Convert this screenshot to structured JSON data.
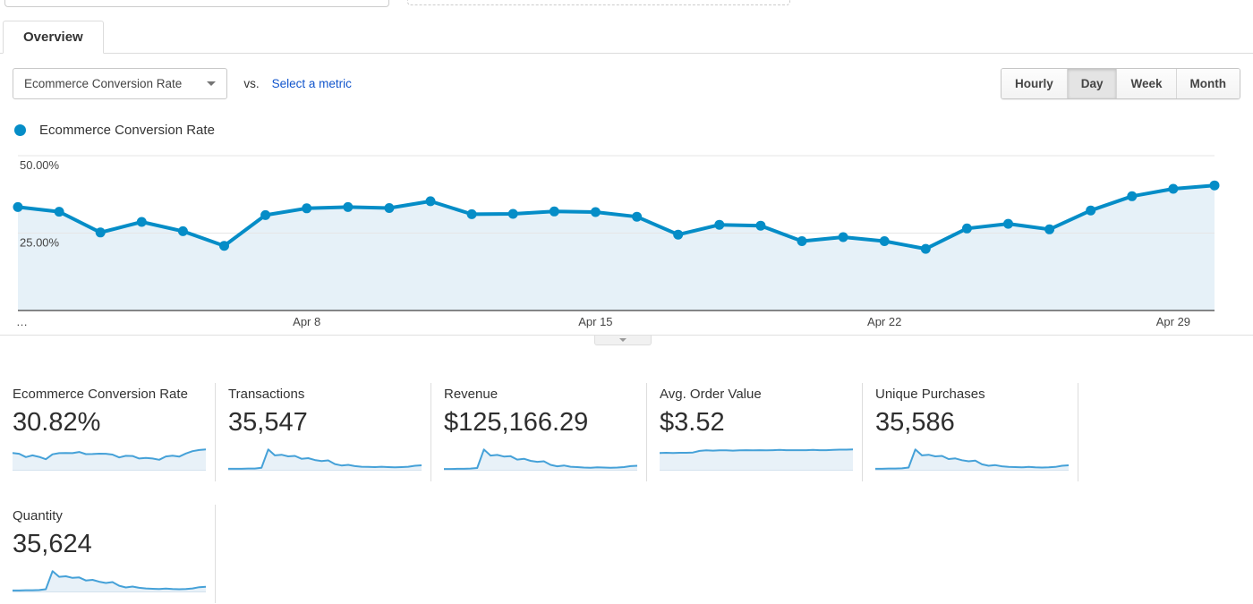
{
  "tabs": {
    "overview": "Overview"
  },
  "controls": {
    "metric_selector": "Ecommerce Conversion Rate",
    "vs_label": "vs.",
    "select_metric_link": "Select a metric",
    "granularity": [
      "Hourly",
      "Day",
      "Week",
      "Month"
    ],
    "granularity_selected": "Day"
  },
  "legend": {
    "label": "Ecommerce Conversion Rate"
  },
  "colors": {
    "line_blue": "#058dc7",
    "area_fill": "#e6f1f8",
    "spark_line": "#45a1d8",
    "spark_fill": "#e8f1f8",
    "grid_gray": "#e6e6e6",
    "axis_dark": "#424242",
    "tick_text": "#444444",
    "link_blue": "#1155cc"
  },
  "chart_data": [
    {
      "type": "area",
      "title": "Ecommerce Conversion Rate",
      "unit": "%",
      "x": [
        "Apr 1",
        "Apr 2",
        "Apr 3",
        "Apr 4",
        "Apr 5",
        "Apr 6",
        "Apr 7",
        "Apr 8",
        "Apr 9",
        "Apr 10",
        "Apr 11",
        "Apr 12",
        "Apr 13",
        "Apr 14",
        "Apr 15",
        "Apr 16",
        "Apr 17",
        "Apr 18",
        "Apr 19",
        "Apr 20",
        "Apr 21",
        "Apr 22",
        "Apr 23",
        "Apr 24",
        "Apr 25",
        "Apr 26",
        "Apr 27",
        "Apr 28",
        "Apr 29",
        "Apr 30"
      ],
      "values": [
        33.4,
        31.9,
        25.2,
        28.6,
        25.6,
        20.9,
        30.8,
        33.0,
        33.4,
        33.1,
        35.3,
        31.1,
        31.2,
        32.0,
        31.8,
        30.3,
        24.5,
        27.7,
        27.4,
        22.4,
        23.7,
        22.4,
        19.9,
        26.5,
        28.0,
        26.2,
        32.3,
        36.9,
        39.3,
        40.4
      ],
      "ylim": [
        0,
        50
      ],
      "yticks": [
        "50.00%",
        "25.00%"
      ],
      "xtick_labels_shown": [
        "…",
        "Apr 8",
        "Apr 15",
        "Apr 22",
        "Apr 29"
      ],
      "xtick_day_indices": [
        7,
        14,
        21,
        28
      ],
      "grid": true,
      "legend_position": "top-left",
      "markers": true
    },
    {
      "type": "area",
      "name": "Ecommerce Conversion Rate sparkline",
      "unit": "%",
      "values": [
        33.4,
        31.9,
        25.2,
        28.6,
        25.6,
        20.9,
        30.8,
        33.0,
        33.4,
        33.1,
        35.3,
        31.1,
        31.2,
        32.0,
        31.8,
        30.3,
        24.5,
        27.7,
        27.4,
        22.4,
        23.7,
        22.4,
        19.9,
        26.5,
        28.0,
        26.2,
        32.3,
        36.9,
        39.3,
        40.4
      ],
      "note": "axes unlabeled"
    },
    {
      "type": "area",
      "name": "Transactions sparkline",
      "values": [
        5,
        5,
        5,
        6,
        6,
        10,
        100,
        71,
        74,
        66,
        68,
        54,
        57,
        48,
        43,
        46,
        28,
        21,
        24,
        18,
        15,
        14,
        13,
        15,
        13,
        12,
        13,
        15,
        20,
        22
      ],
      "note": "relative heights 0-100; axes unlabeled"
    },
    {
      "type": "area",
      "name": "Revenue sparkline",
      "values": [
        4,
        4,
        5,
        5,
        6,
        9,
        100,
        70,
        73,
        65,
        67,
        50,
        54,
        44,
        39,
        42,
        24,
        17,
        21,
        15,
        13,
        11,
        10,
        12,
        11,
        10,
        11,
        13,
        18,
        20
      ],
      "note": "relative heights 0-100; axes unlabeled"
    },
    {
      "type": "area",
      "name": "Avg. Order Value sparkline",
      "values": [
        70,
        71,
        70,
        71,
        71,
        72,
        79,
        81,
        80,
        81,
        81,
        80,
        81,
        82,
        81,
        82,
        81,
        82,
        83,
        82,
        82,
        82,
        82,
        83,
        82,
        82,
        83,
        84,
        84,
        85
      ],
      "note": "relative heights 0-100; axes unlabeled"
    },
    {
      "type": "area",
      "name": "Unique Purchases sparkline",
      "values": [
        5,
        5,
        6,
        6,
        7,
        11,
        100,
        71,
        74,
        66,
        68,
        53,
        56,
        47,
        42,
        45,
        27,
        20,
        23,
        17,
        14,
        13,
        12,
        14,
        12,
        11,
        12,
        14,
        20,
        22
      ],
      "note": "relative heights 0-100; axes unlabeled"
    },
    {
      "type": "area",
      "name": "Quantity sparkline",
      "values": [
        5,
        5,
        6,
        6,
        7,
        11,
        100,
        72,
        75,
        67,
        69,
        54,
        57,
        48,
        42,
        46,
        28,
        20,
        24,
        18,
        15,
        13,
        12,
        14,
        12,
        11,
        12,
        15,
        21,
        23
      ],
      "note": "relative heights 0-100; axes unlabeled"
    }
  ],
  "cards": [
    {
      "title": "Ecommerce Conversion Rate",
      "value": "30.82%"
    },
    {
      "title": "Transactions",
      "value": "35,547"
    },
    {
      "title": "Revenue",
      "value": "$125,166.29"
    },
    {
      "title": "Avg. Order Value",
      "value": "$3.52"
    },
    {
      "title": "Unique Purchases",
      "value": "35,586"
    },
    {
      "title": "Quantity",
      "value": "35,624"
    }
  ]
}
